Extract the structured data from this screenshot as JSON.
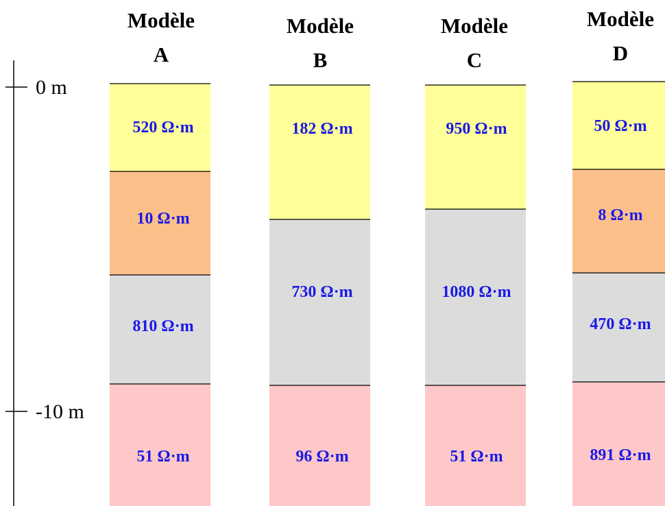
{
  "axis": {
    "ticks": [
      "0 m",
      "-10 m"
    ]
  },
  "models": [
    {
      "title": [
        "Modèle",
        "A"
      ],
      "layers": [
        "520 Ω·m",
        "10 Ω·m",
        "810 Ω·m",
        "51 Ω·m"
      ]
    },
    {
      "title": [
        "Modèle",
        "B"
      ],
      "layers": [
        "182 Ω·m",
        "730 Ω·m",
        "96 Ω·m"
      ]
    },
    {
      "title": [
        "Modèle",
        "C"
      ],
      "layers": [
        "950 Ω·m",
        "1080 Ω·m",
        "51 Ω·m"
      ]
    },
    {
      "title": [
        "Modèle",
        "D"
      ],
      "layers": [
        "50 Ω·m",
        "8 Ω·m",
        "470 Ω·m",
        "891 Ω·m"
      ]
    }
  ]
}
